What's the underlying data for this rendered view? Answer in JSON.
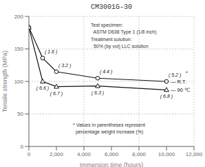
{
  "chart_data": {
    "type": "line",
    "title": "CM3001G-30",
    "xlabel": "Immersion time (hours)",
    "ylabel": "Tensile strength (MPa)",
    "x": [
      0,
      1000,
      2000,
      5000,
      10000
    ],
    "series": [
      {
        "name": "— R.T.",
        "color": "#111111",
        "marker": "circle",
        "values": [
          183,
          136,
          115,
          105,
          100
        ],
        "point_labels": [
          null,
          "( 1.6 )",
          "( 3.2 )",
          "( 4.4 )",
          "( 5.2 )"
        ]
      },
      {
        "name": "— 90 ℃",
        "color": "#111111",
        "marker": "triangle",
        "values": [
          183,
          100,
          92,
          93,
          87
        ],
        "point_labels": [
          null,
          "( 6.6 )",
          "( 6.7 )",
          "( 6.3 )",
          "( 6.8 )"
        ]
      }
    ],
    "xlim": [
      0,
      12000
    ],
    "xticks": [
      0,
      {
        "value": 2000,
        "label": "2,000"
      },
      {
        "value": 4000,
        "label": "4,000"
      },
      {
        "value": 6000,
        "label": "6,000"
      },
      {
        "value": 8000,
        "label": "8,000"
      },
      {
        "value": 10000,
        "label": "10,000"
      },
      {
        "value": 12000,
        "label": "12,000"
      }
    ],
    "ylim": [
      0,
      200
    ],
    "yticks": [
      0,
      50,
      100,
      150,
      200
    ],
    "grid": true,
    "annotations": [
      "Test specimen:\n  ASTM D638 Type 1 (1/8 inch)\nTreatment solution:\n  50% (by vol) LLC solution",
      "* Values in parentheses represent\n  percentage weight increase (%)",
      "*"
    ]
  }
}
